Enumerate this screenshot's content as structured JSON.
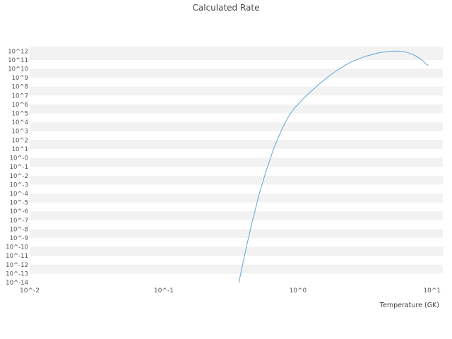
{
  "page": {
    "title": "Calculated Rate"
  },
  "chart_data": {
    "type": "line",
    "title": "Calculated Rate",
    "xlabel": "Temperature (GK)",
    "ylabel": "",
    "x_scale": "log10",
    "y_scale": "log10",
    "legend": "none",
    "grid": "horizontal-bands",
    "x_axis": {
      "range_log10": [
        -2,
        1.08
      ],
      "tick_log10": [
        -2,
        -1,
        0,
        1
      ],
      "tick_labels": [
        "10^-2",
        "10^-1",
        "10^0",
        "10^1"
      ]
    },
    "y_axis": {
      "range_log10": [
        -14,
        12.5
      ],
      "tick_log10": [
        12,
        11,
        10,
        9,
        8,
        7,
        6,
        5,
        4,
        3,
        2,
        1,
        0,
        -1,
        -2,
        -3,
        -4,
        -5,
        -6,
        -7,
        -8,
        -9,
        -10,
        -11,
        -12,
        -13,
        -14
      ],
      "tick_labels": [
        "10^12",
        "10^11",
        "10^10",
        "10^9",
        "10^8",
        "10^7",
        "10^6",
        "10^5",
        "10^4",
        "10^3",
        "10^2",
        "10^1",
        "10^-0",
        "10^-1",
        "10^-2",
        "10^-3",
        "10^-4",
        "10^-5",
        "10^-6",
        "10^-7",
        "10^-8",
        "10^-9",
        "10^-10",
        "10^-11",
        "10^-12",
        "10^-13",
        "10^-14"
      ]
    },
    "style": {
      "line_color": "#6baed6",
      "band_color": "#f2f2f2",
      "text_color": "#555555",
      "background_color": "#ffffff"
    },
    "series": [
      {
        "name": "calculated-rate",
        "temperature_gk": [
          0.363,
          0.38,
          0.398,
          0.417,
          0.437,
          0.457,
          0.479,
          0.501,
          0.525,
          0.55,
          0.575,
          0.603,
          0.631,
          0.661,
          0.692,
          0.724,
          0.759,
          0.794,
          0.832,
          0.871,
          0.912,
          0.955,
          1.0,
          1.122,
          1.259,
          1.413,
          1.585,
          1.778,
          1.995,
          2.239,
          2.512,
          2.818,
          3.162,
          3.548,
          3.981,
          4.467,
          5.012,
          5.37,
          5.754,
          6.166,
          6.607,
          7.079,
          7.586,
          8.128,
          8.511,
          8.913,
          9.333
        ],
        "log10_rate": [
          -14.0,
          -12.5,
          -11.1,
          -9.7,
          -8.4,
          -7.1,
          -5.9,
          -4.7,
          -3.6,
          -2.6,
          -1.6,
          -0.7,
          0.2,
          1.1,
          1.8,
          2.5,
          3.2,
          3.8,
          4.4,
          4.9,
          5.3,
          5.7,
          6.0,
          6.8,
          7.5,
          8.2,
          8.8,
          9.4,
          9.9,
          10.4,
          10.8,
          11.1,
          11.4,
          11.6,
          11.8,
          11.9,
          11.98,
          12.0,
          11.98,
          11.92,
          11.82,
          11.66,
          11.44,
          11.16,
          10.92,
          10.6,
          10.4
        ]
      }
    ]
  }
}
